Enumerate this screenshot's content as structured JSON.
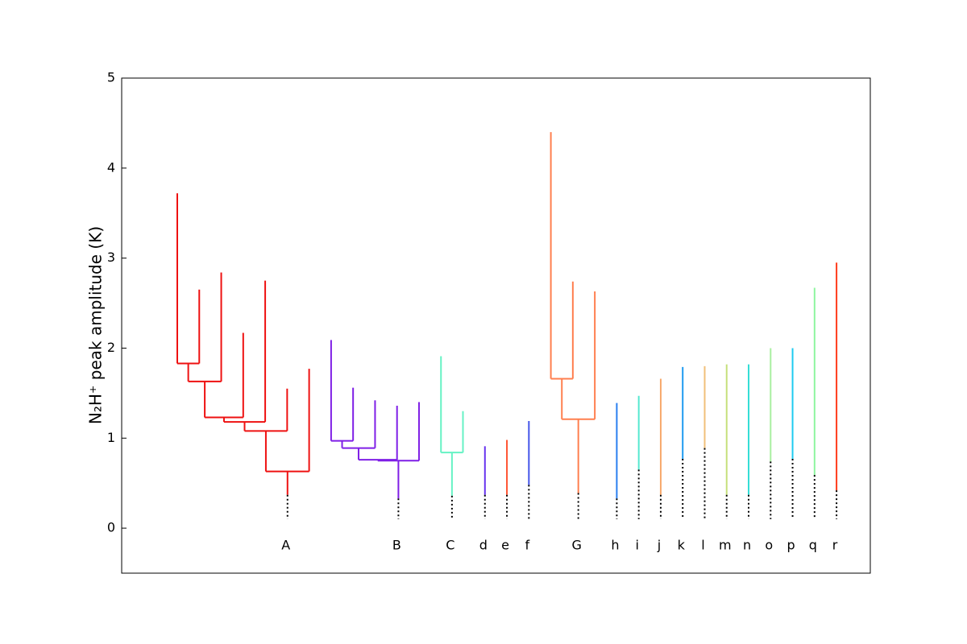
{
  "chart_data": {
    "type": "dendrogram",
    "ylabel": "N₂H⁺ peak amplitude (K)",
    "ylim": [
      -0.5,
      5
    ],
    "yticks": [
      0,
      1,
      2,
      3,
      4,
      5
    ],
    "dotted_floor": 0.1,
    "dotted_color": "#000000",
    "trees": [
      {
        "label": "A",
        "color": "#ee1111",
        "base": 0.37,
        "root": {
          "level": 0.63,
          "children": [
            {
              "level": 1.08,
              "children": [
                {
                  "level": 1.18,
                  "children": [
                    {
                      "level": 1.23,
                      "children": [
                        {
                          "level": 1.63,
                          "children": [
                            {
                              "level": 1.83,
                              "children": [
                                {
                                  "peak": 3.72
                                },
                                {
                                  "peak": 2.65
                                }
                              ]
                            },
                            {
                              "peak": 2.84
                            }
                          ]
                        },
                        {
                          "peak": 2.17
                        }
                      ]
                    },
                    {
                      "peak": 2.75
                    }
                  ]
                },
                {
                  "peak": 1.55
                }
              ]
            },
            {
              "peak": 1.77
            }
          ]
        }
      },
      {
        "label": "B",
        "color": "#7f1fe6",
        "base": 0.33,
        "root": {
          "level": 0.75,
          "children": [
            {
              "level": 0.76,
              "children": [
                {
                  "level": 0.89,
                  "children": [
                    {
                      "level": 0.97,
                      "children": [
                        {
                          "peak": 2.09
                        },
                        {
                          "peak": 1.56
                        }
                      ]
                    },
                    {
                      "peak": 1.42
                    }
                  ]
                },
                {
                  "peak": 1.36
                }
              ]
            },
            {
              "peak": 1.4
            }
          ]
        }
      },
      {
        "label": "C",
        "color": "#66f2c4",
        "base": 0.36,
        "root": {
          "level": 0.84,
          "children": [
            {
              "peak": 1.91
            },
            {
              "peak": 1.3
            }
          ]
        }
      },
      {
        "label": "d",
        "color": "#6633ee",
        "base": 0.37,
        "root": {
          "peak": 0.91
        }
      },
      {
        "label": "e",
        "color": "#ff5533",
        "base": 0.37,
        "root": {
          "peak": 0.98
        }
      },
      {
        "label": "f",
        "color": "#4455e8",
        "base": 0.48,
        "root": {
          "peak": 1.19
        }
      },
      {
        "label": "G",
        "color": "#ff7f4f",
        "base": 0.39,
        "root": {
          "level": 1.21,
          "children": [
            {
              "level": 1.66,
              "children": [
                {
                  "peak": 4.4
                },
                {
                  "peak": 2.74
                }
              ]
            },
            {
              "peak": 2.63
            }
          ]
        }
      },
      {
        "label": "h",
        "color": "#2a7ff0",
        "base": 0.33,
        "root": {
          "peak": 1.39
        }
      },
      {
        "label": "i",
        "color": "#55e8d0",
        "base": 0.65,
        "root": {
          "peak": 1.47
        }
      },
      {
        "label": "j",
        "color": "#f7a96b",
        "base": 0.37,
        "root": {
          "peak": 1.66
        }
      },
      {
        "label": "k",
        "color": "#1e9af0",
        "base": 0.77,
        "root": {
          "peak": 1.79
        }
      },
      {
        "label": "l",
        "color": "#f0c07a",
        "base": 0.89,
        "root": {
          "peak": 1.8
        }
      },
      {
        "label": "m",
        "color": "#c6e07c",
        "base": 0.37,
        "root": {
          "peak": 1.82
        }
      },
      {
        "label": "n",
        "color": "#33ddd6",
        "base": 0.37,
        "root": {
          "peak": 1.82
        }
      },
      {
        "label": "o",
        "color": "#a9f0a0",
        "base": 0.74,
        "root": {
          "peak": 2.0
        }
      },
      {
        "label": "p",
        "color": "#1ecbf0",
        "base": 0.77,
        "root": {
          "peak": 2.0
        }
      },
      {
        "label": "q",
        "color": "#8ff5a0",
        "base": 0.59,
        "root": {
          "peak": 2.67
        }
      },
      {
        "label": "r",
        "color": "#ff3a1a",
        "base": 0.42,
        "root": {
          "peak": 2.95
        }
      }
    ]
  }
}
